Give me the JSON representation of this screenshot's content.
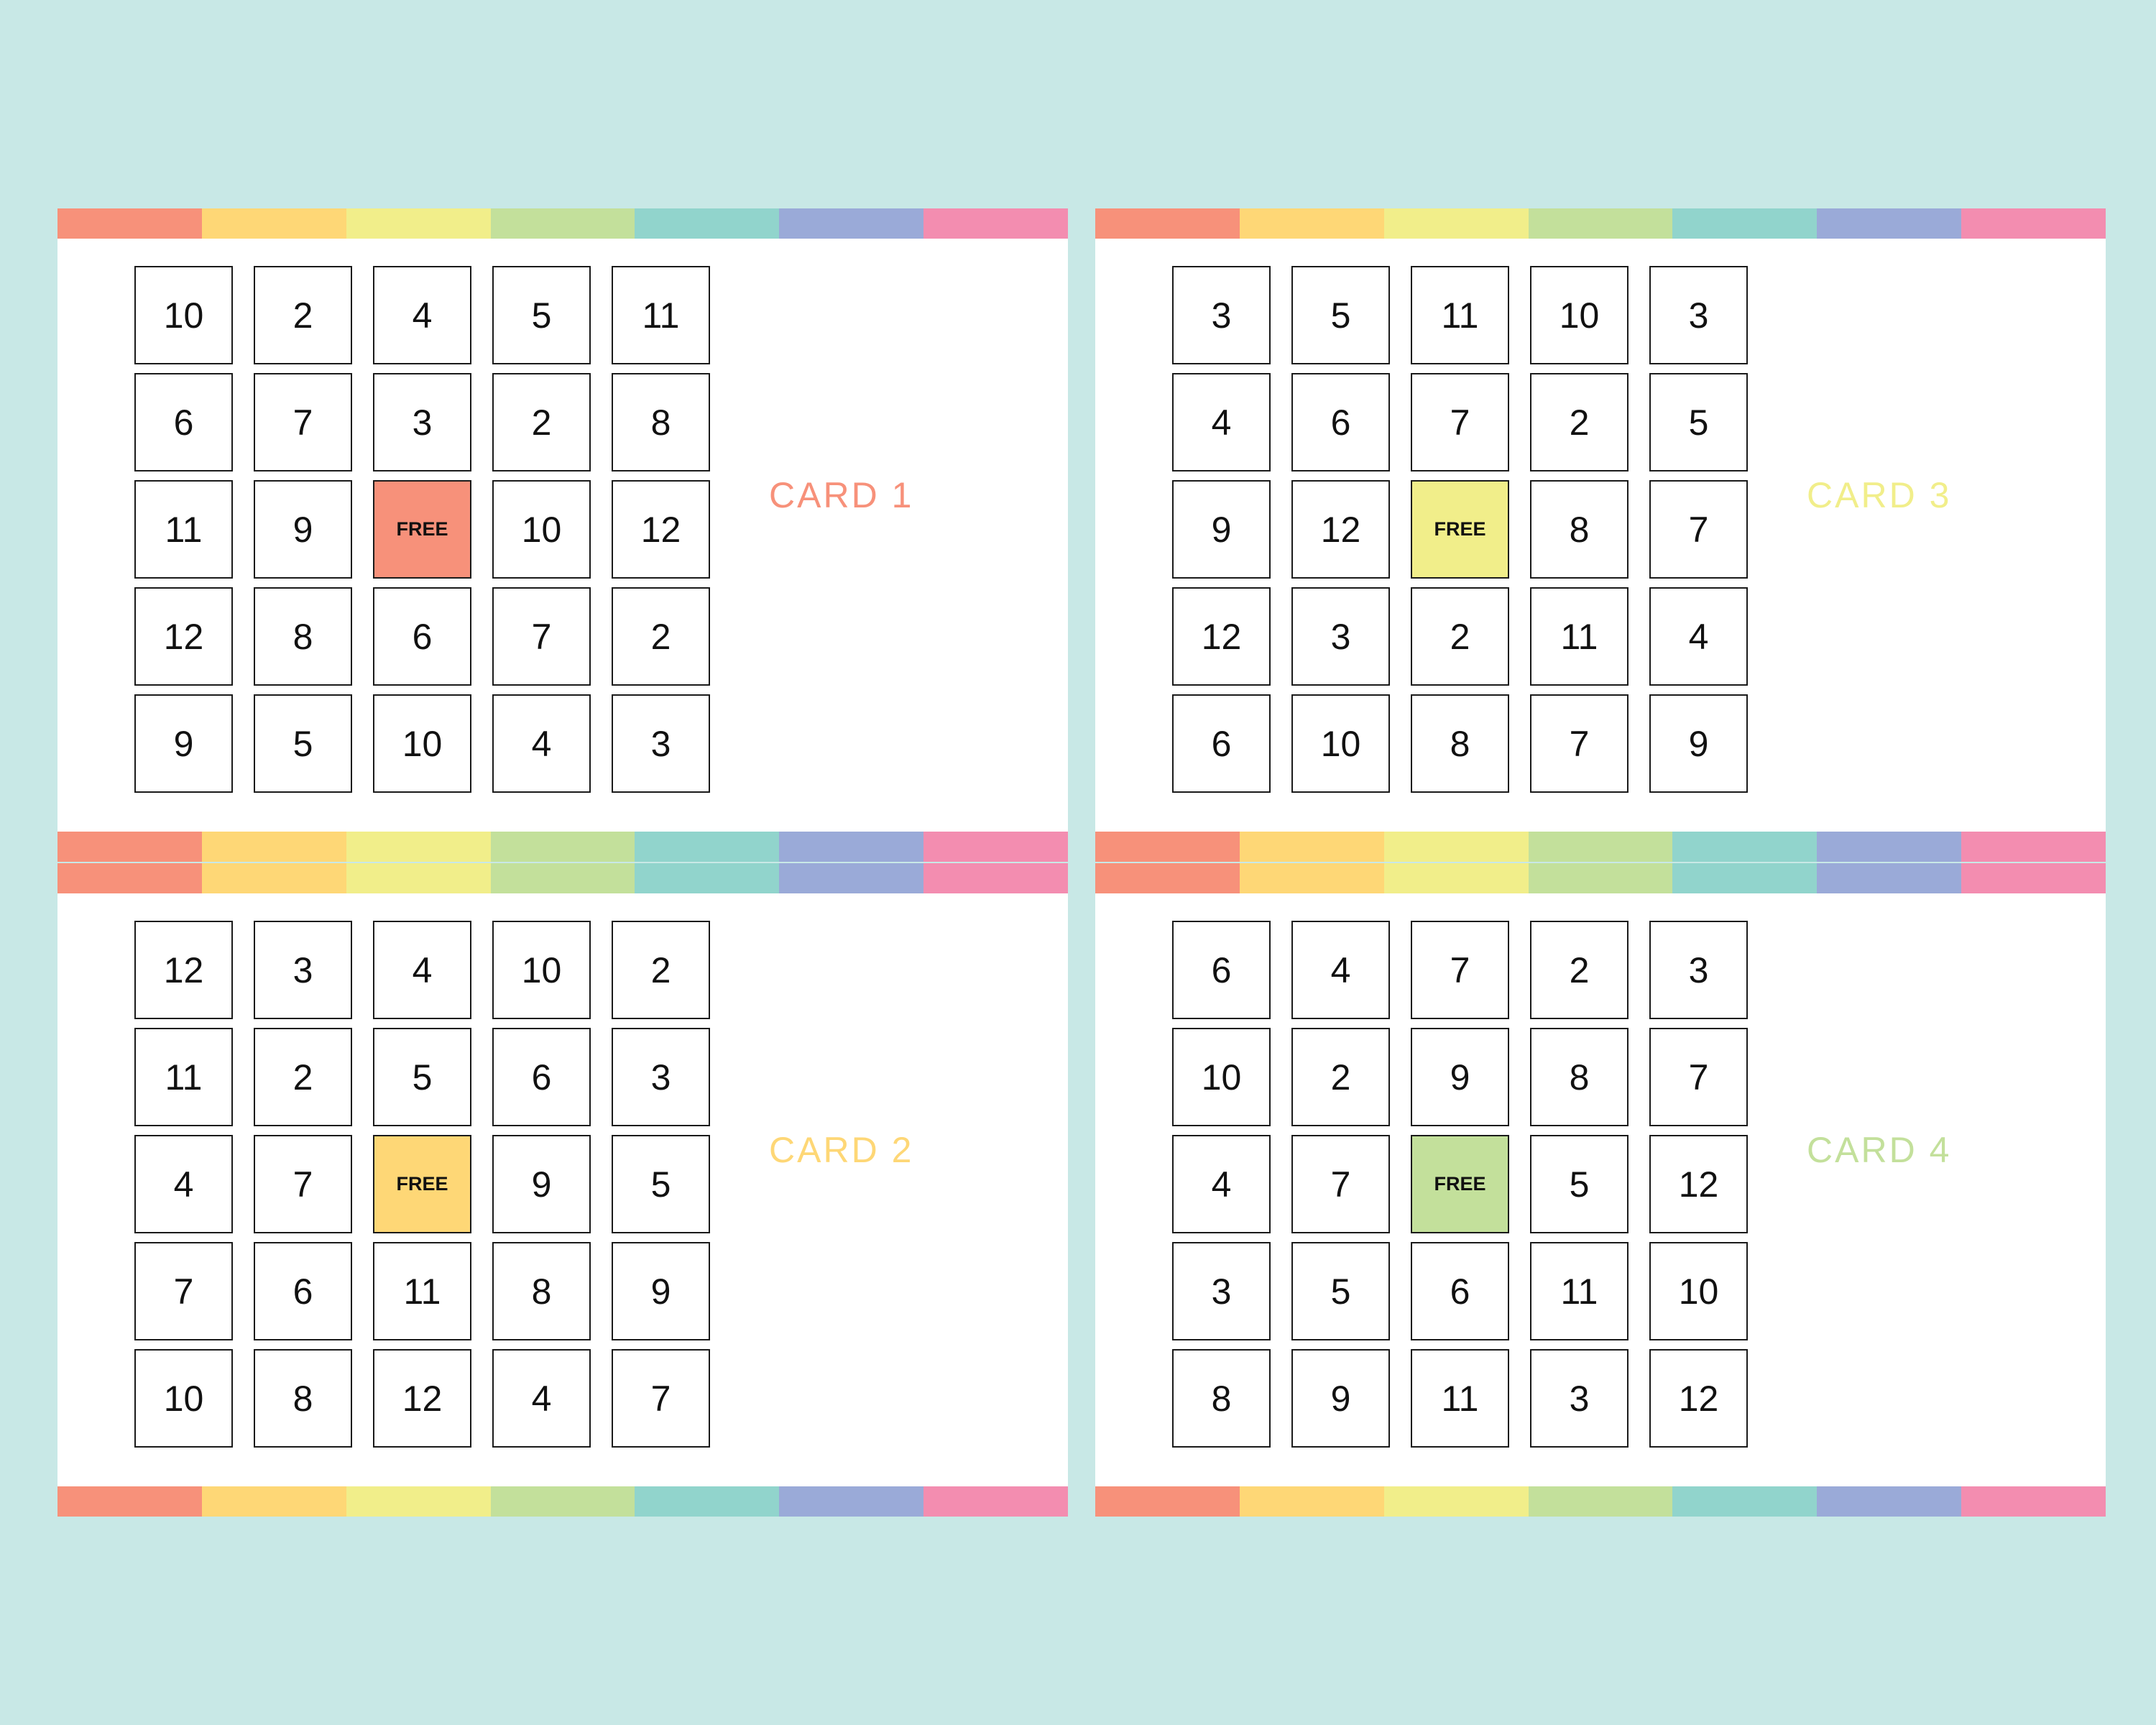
{
  "free_label": "FREE",
  "stripe_colors": [
    "#f7917a",
    "#fed776",
    "#f1ee8a",
    "#c3e09b",
    "#91d4cc",
    "#9aaad8",
    "#f38db0"
  ],
  "cards": [
    {
      "title": "CARD 1",
      "accent": "#f7917a",
      "rows": [
        [
          "10",
          "2",
          "4",
          "5",
          "11"
        ],
        [
          "6",
          "7",
          "3",
          "2",
          "8"
        ],
        [
          "11",
          "9",
          "FREE",
          "10",
          "12"
        ],
        [
          "12",
          "8",
          "6",
          "7",
          "2"
        ],
        [
          "9",
          "5",
          "10",
          "4",
          "3"
        ]
      ]
    },
    {
      "title": "CARD 3",
      "accent": "#f1ee8a",
      "rows": [
        [
          "3",
          "5",
          "11",
          "10",
          "3"
        ],
        [
          "4",
          "6",
          "7",
          "2",
          "5"
        ],
        [
          "9",
          "12",
          "FREE",
          "8",
          "7"
        ],
        [
          "12",
          "3",
          "2",
          "11",
          "4"
        ],
        [
          "6",
          "10",
          "8",
          "7",
          "9"
        ]
      ]
    },
    {
      "title": "CARD 2",
      "accent": "#fed776",
      "rows": [
        [
          "12",
          "3",
          "4",
          "10",
          "2"
        ],
        [
          "11",
          "2",
          "5",
          "6",
          "3"
        ],
        [
          "4",
          "7",
          "FREE",
          "9",
          "5"
        ],
        [
          "7",
          "6",
          "11",
          "8",
          "9"
        ],
        [
          "10",
          "8",
          "12",
          "4",
          "7"
        ]
      ]
    },
    {
      "title": "CARD 4",
      "accent": "#c3e09b",
      "rows": [
        [
          "6",
          "4",
          "7",
          "2",
          "3"
        ],
        [
          "10",
          "2",
          "9",
          "8",
          "7"
        ],
        [
          "4",
          "7",
          "FREE",
          "5",
          "12"
        ],
        [
          "3",
          "5",
          "6",
          "11",
          "10"
        ],
        [
          "8",
          "9",
          "11",
          "3",
          "12"
        ]
      ]
    }
  ]
}
